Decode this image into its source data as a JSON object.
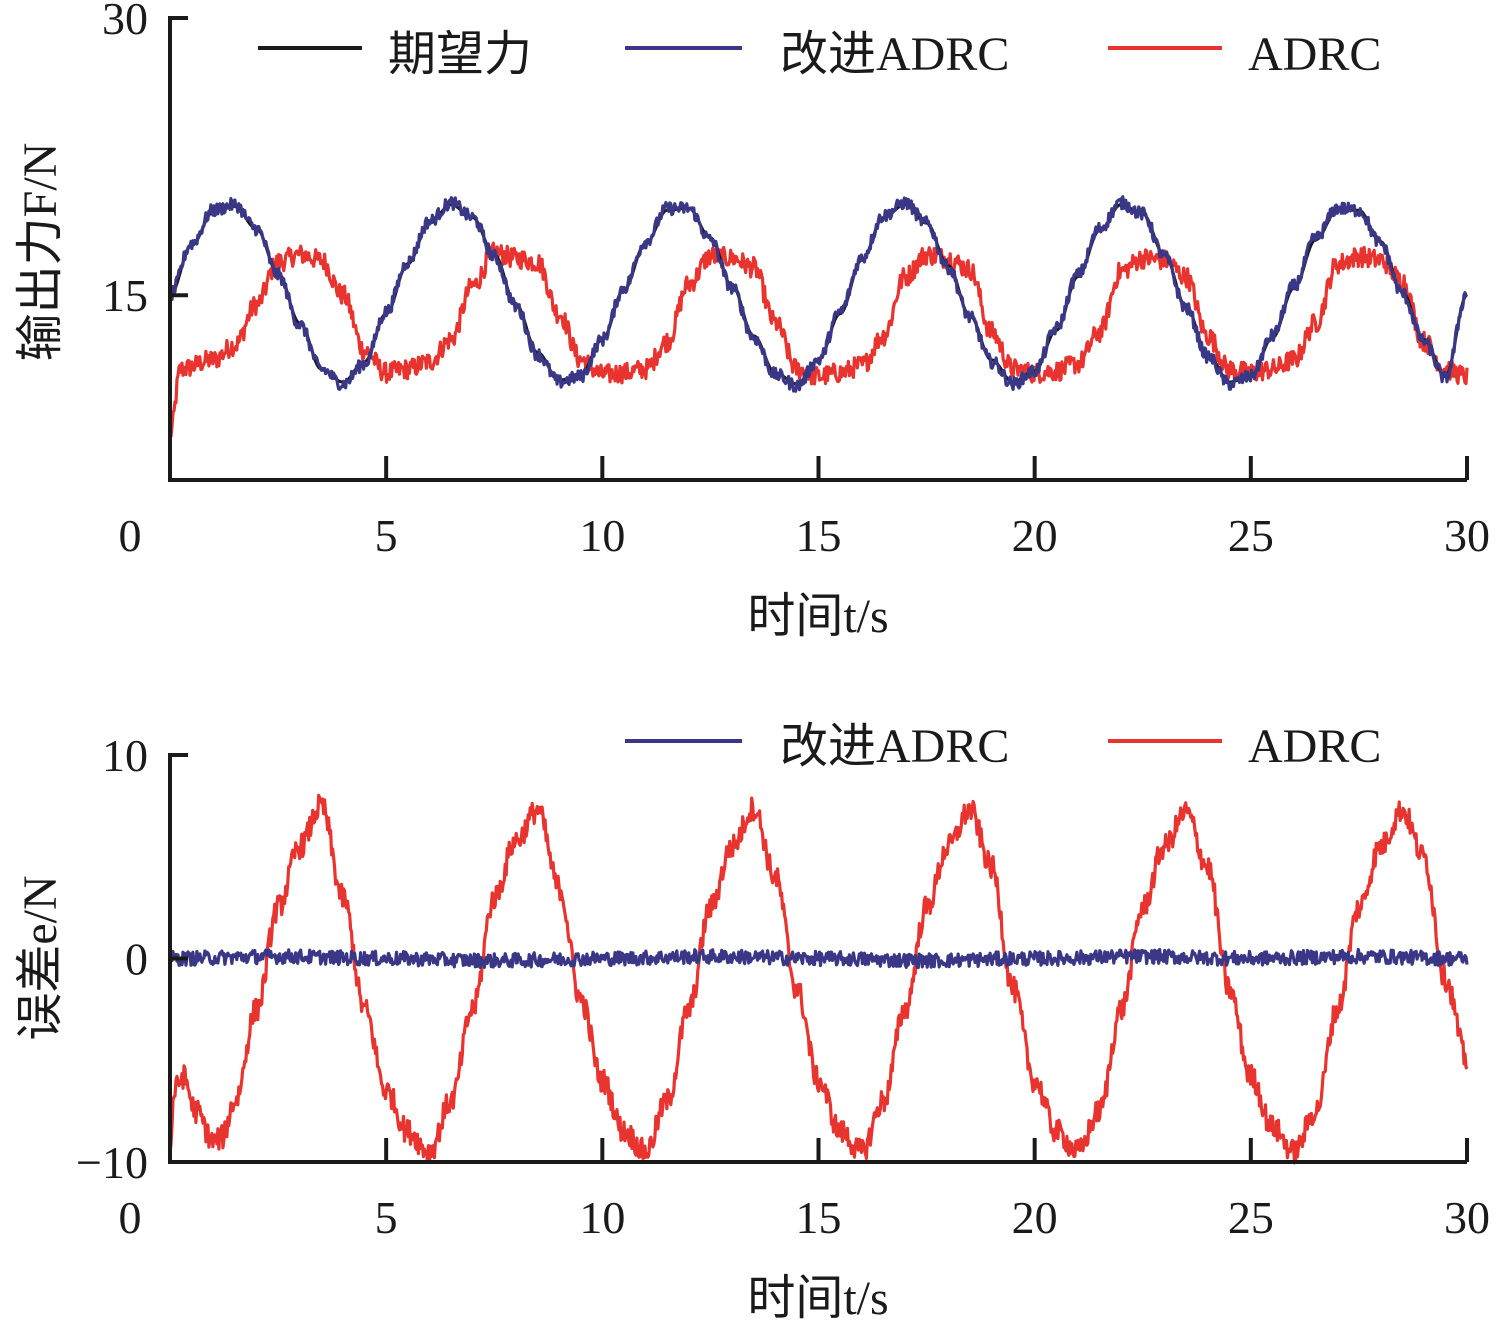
{
  "chart_data": [
    {
      "type": "line",
      "xlabel": "时间t/s",
      "ylabel": "输出力F/N",
      "xlim": [
        0,
        30
      ],
      "ylim": [
        5,
        30
      ],
      "xticks": [
        "0",
        "5",
        "10",
        "15",
        "20",
        "25",
        "30"
      ],
      "yticks": [
        "15",
        "30"
      ],
      "legend_position": "top",
      "grid": false,
      "series": [
        {
          "name": "期望力",
          "color": "#1a1a1a",
          "x": [
            0,
            0.5,
            1.0,
            1.5,
            2.0,
            2.5,
            3.0,
            3.5,
            4.0,
            4.5,
            5.0,
            5.5,
            6.0,
            6.5,
            7.0,
            7.5,
            8.0,
            8.5,
            9.0,
            9.5,
            10.0,
            10.5,
            11.0,
            11.5,
            12.0,
            12.5,
            13.0,
            13.5,
            14.0,
            14.5,
            15.0,
            15.5,
            16.0,
            16.5,
            17.0,
            17.5,
            18.0,
            18.5,
            19.0,
            19.5,
            20.0,
            20.5,
            21.0,
            21.5,
            22.0,
            22.5,
            23.0,
            23.5,
            24.0,
            24.5,
            25.0,
            25.5,
            26.0,
            26.5,
            27.0,
            27.5,
            28.0,
            28.5,
            29.0,
            29.5,
            30.0
          ],
          "values": [
            15.0,
            17.7,
            19.5,
            19.8,
            18.6,
            16.2,
            13.5,
            11.0,
            10.3,
            11.4,
            14.0,
            16.7,
            18.9,
            19.9,
            19.2,
            17.2,
            14.5,
            11.9,
            10.4,
            10.7,
            12.6,
            15.3,
            17.8,
            19.6,
            19.7,
            18.1,
            15.5,
            12.8,
            10.8,
            10.2,
            11.5,
            14.0,
            16.9,
            19.2,
            19.9,
            18.9,
            16.6,
            13.9,
            11.5,
            10.3,
            10.9,
            13.1,
            16.0,
            18.5,
            19.9,
            19.4,
            17.2,
            14.4,
            11.8,
            10.3,
            10.6,
            12.7,
            15.4,
            18.0,
            19.6,
            19.6,
            17.9,
            15.2,
            12.6,
            10.6,
            15.0
          ]
        },
        {
          "name": "改进ADRC",
          "color": "#3a3886",
          "x": [
            0,
            0.5,
            1.0,
            1.5,
            2.0,
            2.5,
            3.0,
            3.5,
            4.0,
            4.5,
            5.0,
            5.5,
            6.0,
            6.5,
            7.0,
            7.5,
            8.0,
            8.5,
            9.0,
            9.5,
            10.0,
            10.5,
            11.0,
            11.5,
            12.0,
            12.5,
            13.0,
            13.5,
            14.0,
            14.5,
            15.0,
            15.5,
            16.0,
            16.5,
            17.0,
            17.5,
            18.0,
            18.5,
            19.0,
            19.5,
            20.0,
            20.5,
            21.0,
            21.5,
            22.0,
            22.5,
            23.0,
            23.5,
            24.0,
            24.5,
            25.0,
            25.5,
            26.0,
            26.5,
            27.0,
            27.5,
            28.0,
            28.5,
            29.0,
            29.5,
            30.0
          ],
          "values": [
            15.0,
            17.8,
            19.6,
            19.9,
            18.6,
            16.1,
            13.4,
            11.0,
            10.2,
            11.3,
            14.1,
            16.8,
            19.0,
            20.0,
            19.2,
            17.1,
            14.4,
            11.8,
            10.3,
            10.6,
            12.6,
            15.4,
            17.9,
            19.7,
            19.7,
            18.0,
            15.4,
            12.7,
            10.7,
            10.1,
            11.5,
            14.1,
            17.0,
            19.3,
            20.0,
            18.9,
            16.5,
            13.8,
            11.4,
            10.2,
            10.9,
            13.2,
            16.1,
            18.6,
            20.0,
            19.4,
            17.1,
            14.3,
            11.7,
            10.2,
            10.6,
            12.8,
            15.5,
            18.1,
            19.7,
            19.6,
            17.8,
            15.1,
            12.5,
            10.5,
            15.1
          ]
        },
        {
          "name": "ADRC",
          "color": "#e8332f",
          "x": [
            0,
            0.25,
            1.0,
            1.5,
            2.0,
            2.5,
            3.0,
            3.5,
            4.0,
            4.5,
            5.0,
            5.5,
            6.0,
            6.5,
            7.0,
            7.5,
            8.0,
            8.5,
            9.0,
            9.5,
            10.0,
            10.5,
            11.0,
            11.5,
            12.0,
            12.5,
            13.0,
            13.5,
            14.0,
            14.5,
            15.0,
            15.5,
            16.0,
            16.5,
            17.0,
            17.5,
            18.0,
            18.5,
            19.0,
            19.5,
            20.0,
            20.5,
            21.0,
            21.5,
            22.0,
            22.5,
            23.0,
            23.5,
            24.0,
            24.5,
            25.0,
            25.5,
            26.0,
            26.5,
            27.0,
            27.5,
            28.0,
            28.5,
            29.0,
            29.5,
            30.0
          ],
          "values": [
            7.5,
            11.0,
            11.5,
            12.3,
            14.5,
            16.8,
            17.2,
            16.9,
            15.0,
            12.0,
            10.8,
            11.0,
            11.4,
            12.6,
            15.5,
            17.3,
            17.0,
            16.8,
            14.0,
            11.5,
            10.7,
            10.8,
            11.0,
            12.5,
            15.6,
            17.1,
            17.0,
            16.5,
            13.5,
            11.0,
            10.6,
            10.8,
            11.2,
            12.8,
            16.0,
            17.2,
            17.0,
            16.4,
            13.0,
            11.0,
            10.8,
            10.9,
            11.3,
            13.0,
            16.3,
            17.0,
            16.9,
            16.0,
            12.8,
            11.0,
            10.8,
            11.0,
            11.5,
            13.5,
            16.7,
            17.1,
            16.9,
            15.8,
            12.5,
            11.0,
            10.6
          ]
        }
      ]
    },
    {
      "type": "line",
      "xlabel": "时间t/s",
      "ylabel": "误差e/N",
      "xlim": [
        0,
        30
      ],
      "ylim": [
        -10,
        10
      ],
      "xticks": [
        "0",
        "5",
        "10",
        "15",
        "20",
        "25",
        "30"
      ],
      "yticks": [
        "−10",
        "0",
        "10"
      ],
      "legend_position": "top-right",
      "grid": false,
      "series": [
        {
          "name": "改进ADRC",
          "color": "#3a3886",
          "x": [
            0,
            2.5,
            5.0,
            7.5,
            10.0,
            12.5,
            15.0,
            17.5,
            20.0,
            22.5,
            25.0,
            27.5,
            30.0
          ],
          "values": [
            0.0,
            0.1,
            0.0,
            -0.1,
            0.0,
            0.1,
            0.0,
            -0.1,
            0.0,
            0.1,
            0.0,
            0.1,
            0.0
          ]
        },
        {
          "name": "ADRC",
          "color": "#e8332f",
          "x": [
            0,
            0.1,
            0.3,
            0.6,
            1.0,
            1.2,
            1.5,
            2.0,
            2.5,
            3.0,
            3.5,
            4.0,
            4.5,
            5.0,
            5.5,
            6.0,
            6.5,
            7.0,
            7.5,
            8.0,
            8.5,
            9.0,
            9.5,
            10.0,
            10.5,
            11.0,
            11.5,
            12.0,
            12.5,
            13.0,
            13.5,
            14.0,
            14.5,
            15.0,
            15.5,
            16.0,
            16.5,
            17.0,
            17.5,
            18.0,
            18.5,
            19.0,
            19.5,
            20.0,
            20.5,
            21.0,
            21.5,
            22.0,
            22.5,
            23.0,
            23.5,
            24.0,
            24.5,
            25.0,
            25.5,
            26.0,
            26.5,
            27.0,
            27.5,
            28.0,
            28.5,
            29.0,
            29.5,
            30.0
          ],
          "values": [
            -9.5,
            -6.5,
            -5.8,
            -7.5,
            -9.0,
            -8.8,
            -7.0,
            -2.5,
            2.5,
            5.5,
            7.5,
            3.0,
            -2.5,
            -6.5,
            -8.5,
            -9.5,
            -7.0,
            -2.5,
            3.0,
            5.8,
            7.3,
            3.5,
            -2.0,
            -6.0,
            -8.5,
            -9.5,
            -7.0,
            -2.5,
            2.5,
            5.5,
            7.4,
            4.0,
            -1.5,
            -6.0,
            -8.5,
            -9.5,
            -7.0,
            -2.5,
            2.5,
            5.5,
            7.3,
            4.5,
            -1.5,
            -6.0,
            -8.5,
            -9.5,
            -7.5,
            -2.5,
            2.5,
            5.5,
            7.2,
            4.5,
            -1.5,
            -5.8,
            -8.3,
            -9.5,
            -7.5,
            -2.5,
            2.5,
            5.5,
            7.3,
            5.0,
            -1.0,
            -5.0
          ]
        }
      ]
    }
  ]
}
